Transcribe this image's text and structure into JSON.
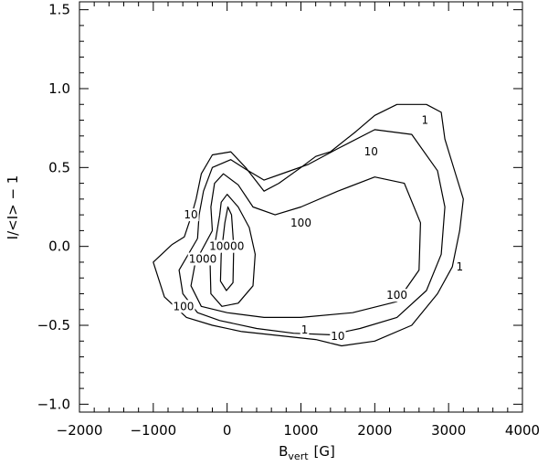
{
  "chart_data": {
    "type": "contour",
    "xlabel": "B",
    "xlabel_sub": "vert",
    "xlabel_unit": "[G]",
    "ylabel": "I/<I> − 1",
    "xlim": [
      -2000,
      4000
    ],
    "ylim": [
      -1.05,
      1.55
    ],
    "x_ticks": [
      -2000,
      -1000,
      0,
      1000,
      2000,
      3000,
      4000
    ],
    "x_tick_labels": [
      "−2000",
      "−1000",
      "0",
      "1000",
      "2000",
      "3000",
      "4000"
    ],
    "y_ticks": [
      -1.0,
      -0.5,
      0.0,
      0.5,
      1.0,
      1.5
    ],
    "y_tick_labels": [
      "−1.0",
      "−0.5",
      "0.0",
      "0.5",
      "1.0",
      "1.5"
    ],
    "x_minor_step": 200,
    "y_minor_step": 0.1,
    "grid": false,
    "contours": [
      {
        "level": "1",
        "points": [
          [
            -750,
            0.01
          ],
          [
            -1000,
            -0.1
          ],
          [
            -850,
            -0.32
          ],
          [
            -550,
            -0.45
          ],
          [
            -200,
            -0.5
          ],
          [
            200,
            -0.54
          ],
          [
            600,
            -0.56
          ],
          [
            1200,
            -0.59
          ],
          [
            1550,
            -0.63
          ],
          [
            2000,
            -0.6
          ],
          [
            2500,
            -0.5
          ],
          [
            2850,
            -0.3
          ],
          [
            3050,
            -0.13
          ],
          [
            3150,
            0.1
          ],
          [
            3200,
            0.3
          ],
          [
            3100,
            0.45
          ],
          [
            2950,
            0.68
          ],
          [
            2900,
            0.85
          ],
          [
            2700,
            0.9
          ],
          [
            2300,
            0.9
          ],
          [
            2000,
            0.83
          ],
          [
            1750,
            0.73
          ],
          [
            1400,
            0.6
          ],
          [
            1200,
            0.57
          ],
          [
            1000,
            0.5
          ],
          [
            700,
            0.4
          ],
          [
            500,
            0.35
          ],
          [
            250,
            0.5
          ],
          [
            50,
            0.6
          ],
          [
            -200,
            0.58
          ],
          [
            -350,
            0.46
          ],
          [
            -420,
            0.3
          ],
          [
            -480,
            0.2
          ],
          [
            -580,
            0.06
          ],
          [
            -750,
            0.01
          ]
        ],
        "labels": [
          {
            "x": 1050,
            "y": -0.53
          },
          {
            "x": 2680,
            "y": 0.8
          },
          {
            "x": 3150,
            "y": -0.13
          }
        ]
      },
      {
        "level": "10",
        "points": [
          [
            -400,
            0.05
          ],
          [
            -650,
            -0.15
          ],
          [
            -600,
            -0.3
          ],
          [
            -400,
            -0.42
          ],
          [
            -100,
            -0.47
          ],
          [
            400,
            -0.52
          ],
          [
            900,
            -0.55
          ],
          [
            1400,
            -0.56
          ],
          [
            1800,
            -0.52
          ],
          [
            2300,
            -0.45
          ],
          [
            2700,
            -0.28
          ],
          [
            2900,
            -0.05
          ],
          [
            2950,
            0.25
          ],
          [
            2850,
            0.48
          ],
          [
            2500,
            0.71
          ],
          [
            2000,
            0.74
          ],
          [
            1500,
            0.62
          ],
          [
            1100,
            0.52
          ],
          [
            800,
            0.47
          ],
          [
            500,
            0.42
          ],
          [
            250,
            0.49
          ],
          [
            50,
            0.55
          ],
          [
            -200,
            0.5
          ],
          [
            -320,
            0.35
          ],
          [
            -380,
            0.2
          ],
          [
            -400,
            0.05
          ]
        ],
        "labels": [
          {
            "x": 1500,
            "y": -0.57
          },
          {
            "x": 1950,
            "y": 0.6
          },
          {
            "x": -490,
            "y": 0.2
          }
        ]
      },
      {
        "level": "100",
        "points": [
          [
            -200,
            0.1
          ],
          [
            -430,
            -0.1
          ],
          [
            -490,
            -0.25
          ],
          [
            -350,
            -0.38
          ],
          [
            0,
            -0.42
          ],
          [
            500,
            -0.45
          ],
          [
            1000,
            -0.45
          ],
          [
            1700,
            -0.42
          ],
          [
            2300,
            -0.35
          ],
          [
            2600,
            -0.15
          ],
          [
            2620,
            0.15
          ],
          [
            2400,
            0.4
          ],
          [
            2000,
            0.44
          ],
          [
            1500,
            0.35
          ],
          [
            1000,
            0.25
          ],
          [
            650,
            0.2
          ],
          [
            350,
            0.25
          ],
          [
            150,
            0.39
          ],
          [
            -50,
            0.46
          ],
          [
            -170,
            0.4
          ],
          [
            -220,
            0.25
          ],
          [
            -200,
            0.1
          ]
        ],
        "labels": [
          {
            "x": 2300,
            "y": -0.31
          },
          {
            "x": 1000,
            "y": 0.15
          },
          {
            "x": -590,
            "y": -0.38
          }
        ]
      },
      {
        "level": "1000",
        "points": [
          [
            -100,
            0.2
          ],
          [
            -170,
            0.0
          ],
          [
            -230,
            -0.12
          ],
          [
            -220,
            -0.3
          ],
          [
            -70,
            -0.38
          ],
          [
            150,
            -0.36
          ],
          [
            350,
            -0.25
          ],
          [
            380,
            -0.05
          ],
          [
            300,
            0.12
          ],
          [
            150,
            0.25
          ],
          [
            0,
            0.33
          ],
          [
            -80,
            0.28
          ],
          [
            -100,
            0.2
          ]
        ],
        "labels": [
          {
            "x": -330,
            "y": -0.08
          }
        ]
      },
      {
        "level": "10000",
        "points": [
          [
            -30,
            0.15
          ],
          [
            -80,
            -0.05
          ],
          [
            -90,
            -0.22
          ],
          [
            -10,
            -0.28
          ],
          [
            80,
            -0.23
          ],
          [
            90,
            0.0
          ],
          [
            60,
            0.2
          ],
          [
            10,
            0.25
          ],
          [
            -30,
            0.15
          ]
        ],
        "labels": [
          {
            "x": -5,
            "y": 0.0
          }
        ]
      }
    ]
  }
}
